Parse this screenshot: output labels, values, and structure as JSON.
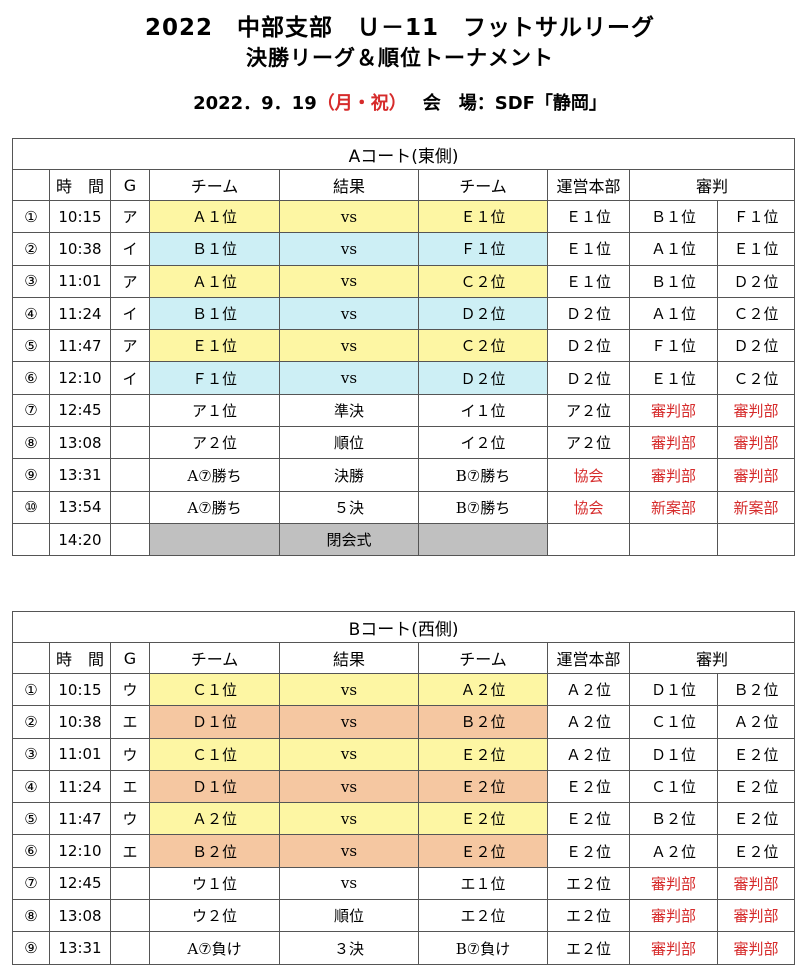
{
  "header": {
    "title": "2022　中部支部　Ｕ－11　フットサルリーグ",
    "subtitle": "決勝リーグ＆順位トーナメント",
    "date": "2022．9．19",
    "day_open": "（",
    "day": "月",
    "day_sep": "・",
    "holiday": "祝",
    "day_close": "）",
    "venue_label": "会　場",
    "venue": "：SDF「静岡」"
  },
  "columns": {
    "time": "時　間",
    "group": "G",
    "team": "チーム",
    "result": "結果",
    "management": "運営本部",
    "referee": "審判"
  },
  "court_a": {
    "title": "Aコート(東側)",
    "rows": [
      {
        "no": "①",
        "time": "10:15",
        "g": "ア",
        "home": "Ａ１位",
        "result": "vs",
        "away": "Ｅ１位",
        "hq": "Ｅ１位",
        "ref1": "Ｂ１位",
        "ref2": "Ｆ１位"
      },
      {
        "no": "②",
        "time": "10:38",
        "g": "イ",
        "home": "Ｂ１位",
        "result": "vs",
        "away": "Ｆ１位",
        "hq": "Ｅ１位",
        "ref1": "Ａ１位",
        "ref2": "Ｅ１位"
      },
      {
        "no": "③",
        "time": "11:01",
        "g": "ア",
        "home": "Ａ１位",
        "result": "vs",
        "away": "Ｃ２位",
        "hq": "Ｅ１位",
        "ref1": "Ｂ１位",
        "ref2": "Ｄ２位"
      },
      {
        "no": "④",
        "time": "11:24",
        "g": "イ",
        "home": "Ｂ１位",
        "result": "vs",
        "away": "Ｄ２位",
        "hq": "Ｄ２位",
        "ref1": "Ａ１位",
        "ref2": "Ｃ２位"
      },
      {
        "no": "⑤",
        "time": "11:47",
        "g": "ア",
        "home": "Ｅ１位",
        "result": "vs",
        "away": "Ｃ２位",
        "hq": "Ｄ２位",
        "ref1": "Ｆ１位",
        "ref2": "Ｄ２位"
      },
      {
        "no": "⑥",
        "time": "12:10",
        "g": "イ",
        "home": "Ｆ１位",
        "result": "vs",
        "away": "Ｄ２位",
        "hq": "Ｄ２位",
        "ref1": "Ｅ１位",
        "ref2": "Ｃ２位"
      },
      {
        "no": "⑦",
        "time": "12:45",
        "g": "",
        "home": "ア１位",
        "result": "準決",
        "away": "イ１位",
        "hq": "ア２位",
        "ref1": "審判部",
        "ref2": "審判部"
      },
      {
        "no": "⑧",
        "time": "13:08",
        "g": "",
        "home": "ア２位",
        "result": "順位",
        "away": "イ２位",
        "hq": "ア２位",
        "ref1": "審判部",
        "ref2": "審判部"
      },
      {
        "no": "⑨",
        "time": "13:31",
        "g": "",
        "home": "A⑦勝ち",
        "result": "決勝",
        "away": "B⑦勝ち",
        "hq": "協会",
        "ref1": "審判部",
        "ref2": "審判部"
      },
      {
        "no": "⑩",
        "time": "13:54",
        "g": "",
        "home": "A⑦勝ち",
        "result": "５決",
        "away": "B⑦勝ち",
        "hq": "協会",
        "ref1": "新案部",
        "ref2": "新案部"
      }
    ],
    "closing": {
      "time": "14:20",
      "label": "閉会式"
    }
  },
  "court_b": {
    "title": "Bコート(西側)",
    "rows": [
      {
        "no": "①",
        "time": "10:15",
        "g": "ウ",
        "home": "Ｃ１位",
        "result": "vs",
        "away": "Ａ２位",
        "hq": "Ａ２位",
        "ref1": "Ｄ１位",
        "ref2": "Ｂ２位"
      },
      {
        "no": "②",
        "time": "10:38",
        "g": "エ",
        "home": "Ｄ１位",
        "result": "vs",
        "away": "Ｂ２位",
        "hq": "Ａ２位",
        "ref1": "Ｃ１位",
        "ref2": "Ａ２位"
      },
      {
        "no": "③",
        "time": "11:01",
        "g": "ウ",
        "home": "Ｃ１位",
        "result": "vs",
        "away": "Ｅ２位",
        "hq": "Ａ２位",
        "ref1": "Ｄ１位",
        "ref2": "Ｅ２位"
      },
      {
        "no": "④",
        "time": "11:24",
        "g": "エ",
        "home": "Ｄ１位",
        "result": "vs",
        "away": "Ｅ２位",
        "hq": "Ｅ２位",
        "ref1": "Ｃ１位",
        "ref2": "Ｅ２位"
      },
      {
        "no": "⑤",
        "time": "11:47",
        "g": "ウ",
        "home": "Ａ２位",
        "result": "vs",
        "away": "Ｅ２位",
        "hq": "Ｅ２位",
        "ref1": "Ｂ２位",
        "ref2": "Ｅ２位"
      },
      {
        "no": "⑥",
        "time": "12:10",
        "g": "エ",
        "home": "Ｂ２位",
        "result": "vs",
        "away": "Ｅ２位",
        "hq": "Ｅ２位",
        "ref1": "Ａ２位",
        "ref2": "Ｅ２位"
      },
      {
        "no": "⑦",
        "time": "12:45",
        "g": "",
        "home": "ウ１位",
        "result": "vs",
        "away": "エ１位",
        "hq": "エ２位",
        "ref1": "審判部",
        "ref2": "審判部"
      },
      {
        "no": "⑧",
        "time": "13:08",
        "g": "",
        "home": "ウ２位",
        "result": "順位",
        "away": "エ２位",
        "hq": "エ２位",
        "ref1": "審判部",
        "ref2": "審判部"
      },
      {
        "no": "⑨",
        "time": "13:31",
        "g": "",
        "home": "A⑦負け",
        "result": "３決",
        "away": "B⑦負け",
        "hq": "エ２位",
        "ref1": "審判部",
        "ref2": "審判部"
      }
    ]
  },
  "colors": {
    "yellow": "#fdf6a3",
    "cyan": "#cdeff5",
    "orange": "#f5c7a1",
    "gray": "#c0c0c0",
    "red_text": "#d62b2b"
  }
}
